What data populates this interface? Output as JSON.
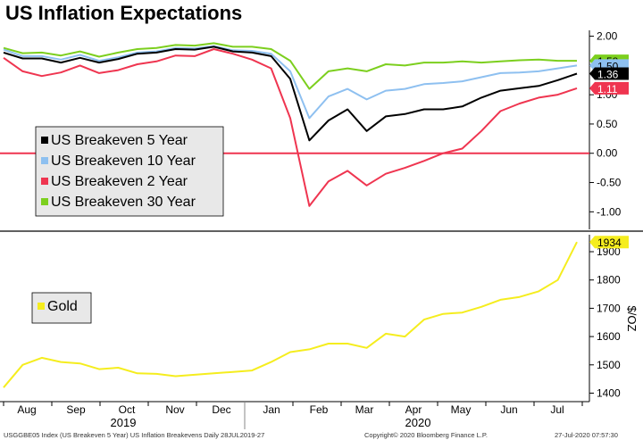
{
  "title": "US Inflation Expectations",
  "footer": {
    "left": "USGGBE05 Index (US Breakeven 5 Year) US Inflation Breakevens  Daily 28JUL2019-27",
    "center": "Copyright© 2020 Bloomberg Finance L.P.",
    "right": "27-Jul-2020 07:57:30"
  },
  "chart_data": [
    {
      "type": "line",
      "title": "US Inflation Expectations",
      "xlabel": "",
      "ylabel": "",
      "ylim": [
        -1.3,
        2.1
      ],
      "yticks": [
        "2.00",
        "1.50",
        "1.00",
        "0.50",
        "0.00",
        "-0.50",
        "-1.00"
      ],
      "x": [
        0,
        2,
        4,
        6,
        8,
        10,
        12,
        14,
        16,
        18,
        20,
        22,
        24,
        26,
        28,
        30,
        32,
        34,
        36,
        38,
        40,
        42,
        44,
        46,
        48,
        50,
        52,
        54,
        56,
        58,
        60
      ],
      "reference_line": 0,
      "series": [
        {
          "name": "US Breakeven 5 Year",
          "color": "#000000",
          "last_label": "1.36",
          "values": [
            1.72,
            1.62,
            1.62,
            1.55,
            1.63,
            1.55,
            1.61,
            1.7,
            1.72,
            1.78,
            1.77,
            1.82,
            1.74,
            1.72,
            1.66,
            1.27,
            0.22,
            0.56,
            0.75,
            0.38,
            0.63,
            0.67,
            0.75,
            0.75,
            0.8,
            0.95,
            1.07,
            1.11,
            1.15,
            1.25,
            1.36
          ]
        },
        {
          "name": "US Breakeven 10 Year",
          "color": "#8ec0f0",
          "last_label": "1.50",
          "values": [
            1.77,
            1.66,
            1.66,
            1.6,
            1.68,
            1.58,
            1.64,
            1.72,
            1.74,
            1.8,
            1.79,
            1.83,
            1.76,
            1.75,
            1.7,
            1.4,
            0.6,
            0.97,
            1.1,
            0.92,
            1.07,
            1.1,
            1.18,
            1.2,
            1.23,
            1.3,
            1.37,
            1.38,
            1.4,
            1.45,
            1.5
          ]
        },
        {
          "name": "US Breakeven 2 Year",
          "color": "#ef3550",
          "last_label": "1.11",
          "values": [
            1.63,
            1.4,
            1.32,
            1.38,
            1.5,
            1.37,
            1.42,
            1.52,
            1.57,
            1.67,
            1.66,
            1.78,
            1.7,
            1.6,
            1.45,
            0.6,
            -0.9,
            -0.48,
            -0.3,
            -0.55,
            -0.35,
            -0.25,
            -0.13,
            0.0,
            0.08,
            0.38,
            0.72,
            0.85,
            0.95,
            1.0,
            1.11
          ]
        },
        {
          "name": "US Breakeven 30 Year",
          "color": "#7ccf1e",
          "last_label": "1.58",
          "values": [
            1.8,
            1.71,
            1.72,
            1.67,
            1.74,
            1.65,
            1.72,
            1.78,
            1.8,
            1.85,
            1.84,
            1.88,
            1.82,
            1.82,
            1.78,
            1.58,
            1.1,
            1.4,
            1.45,
            1.4,
            1.52,
            1.5,
            1.55,
            1.55,
            1.57,
            1.55,
            1.57,
            1.59,
            1.6,
            1.58,
            1.58
          ]
        }
      ]
    },
    {
      "type": "line",
      "title": "",
      "xlabel": "",
      "ylabel": "$/OZ",
      "ylim": [
        1370,
        1960
      ],
      "yticks": [
        "1900",
        "1800",
        "1700",
        "1600",
        "1500",
        "1400"
      ],
      "x": [
        0,
        2,
        4,
        6,
        8,
        10,
        12,
        14,
        16,
        18,
        20,
        22,
        24,
        26,
        28,
        30,
        32,
        34,
        36,
        38,
        40,
        42,
        44,
        46,
        48,
        50,
        52,
        54,
        56,
        58,
        60
      ],
      "series": [
        {
          "name": "Gold",
          "color": "#f5ed1e",
          "last_label": "1934",
          "values": [
            1420,
            1500,
            1525,
            1510,
            1505,
            1485,
            1490,
            1470,
            1468,
            1460,
            1465,
            1470,
            1475,
            1480,
            1510,
            1545,
            1555,
            1575,
            1575,
            1560,
            1610,
            1600,
            1660,
            1680,
            1685,
            1705,
            1730,
            1740,
            1760,
            1800,
            1934
          ]
        }
      ]
    }
  ],
  "x_axis": {
    "months": [
      "Aug",
      "Sep",
      "Oct",
      "Nov",
      "Dec",
      "Jan",
      "Feb",
      "Mar",
      "Apr",
      "May",
      "Jun",
      "Jul"
    ],
    "years": [
      "2019",
      "2020"
    ]
  }
}
